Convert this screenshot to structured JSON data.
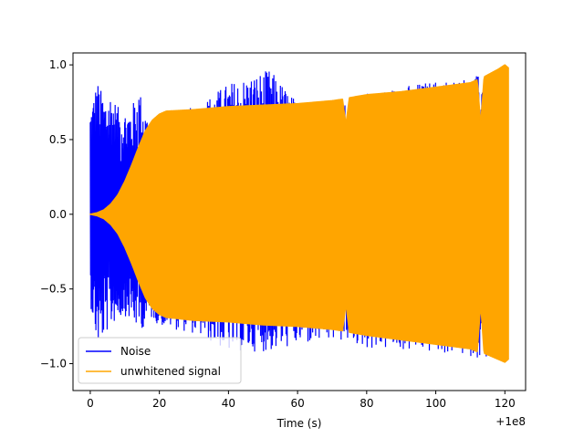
{
  "chart_data": {
    "type": "line",
    "title": "",
    "xlabel": "Time (s)",
    "ylabel": "",
    "x_offset_label": "+1e8",
    "xlim": [
      -5,
      126
    ],
    "ylim": [
      -1.18,
      1.08
    ],
    "x_ticks": [
      0,
      20,
      40,
      60,
      80,
      100,
      120
    ],
    "x_tick_labels": [
      "0",
      "20",
      "40",
      "60",
      "80",
      "100",
      "120"
    ],
    "y_ticks": [
      -1.0,
      -0.5,
      0.0,
      0.5,
      1.0
    ],
    "y_tick_labels": [
      "−1.0",
      "−0.5",
      "0.0",
      "0.5",
      "1.0"
    ],
    "grid": false,
    "legend_position": "lower-left",
    "series": [
      {
        "name": "Noise",
        "color": "#0000ff",
        "x_range": [
          0,
          120
        ],
        "envelope": {
          "x": [
            0,
            2,
            4,
            6,
            8,
            10,
            12,
            14,
            16,
            18,
            20,
            30,
            40,
            52,
            60,
            74,
            80,
            100,
            120
          ],
          "upper": [
            0.72,
            0.9,
            0.78,
            0.82,
            0.72,
            0.7,
            0.72,
            0.85,
            0.7,
            0.6,
            0.65,
            0.72,
            0.88,
            0.97,
            0.75,
            0.75,
            0.82,
            0.9,
            0.95
          ],
          "lower": [
            -0.6,
            -0.88,
            -0.82,
            -0.75,
            -0.7,
            -0.68,
            -0.72,
            -0.78,
            -0.75,
            -0.7,
            -0.75,
            -0.8,
            -0.92,
            -0.92,
            -0.88,
            -0.85,
            -0.9,
            -0.93,
            -0.98
          ]
        }
      },
      {
        "name": "unwhitened signal",
        "color": "#ffa500",
        "x_range": [
          0,
          121
        ],
        "envelope": {
          "x": [
            0,
            2,
            4,
            6,
            8,
            10,
            12,
            14,
            16,
            18,
            20,
            22,
            30,
            40,
            50,
            60,
            70,
            73,
            74,
            75,
            80,
            90,
            100,
            110,
            112,
            113,
            114,
            118,
            120,
            121
          ],
          "upper": [
            0.0,
            0.01,
            0.03,
            0.07,
            0.13,
            0.22,
            0.33,
            0.45,
            0.56,
            0.63,
            0.67,
            0.69,
            0.7,
            0.72,
            0.73,
            0.74,
            0.76,
            0.77,
            0.6,
            0.78,
            0.8,
            0.82,
            0.85,
            0.88,
            0.9,
            0.6,
            0.92,
            0.97,
            1.0,
            0.98
          ],
          "lower": [
            0.0,
            -0.01,
            -0.03,
            -0.07,
            -0.13,
            -0.22,
            -0.33,
            -0.45,
            -0.56,
            -0.63,
            -0.67,
            -0.69,
            -0.71,
            -0.72,
            -0.74,
            -0.75,
            -0.77,
            -0.78,
            -0.6,
            -0.79,
            -0.81,
            -0.84,
            -0.87,
            -0.9,
            -0.92,
            -0.6,
            -0.93,
            -0.97,
            -0.99,
            -0.97
          ]
        }
      }
    ]
  }
}
